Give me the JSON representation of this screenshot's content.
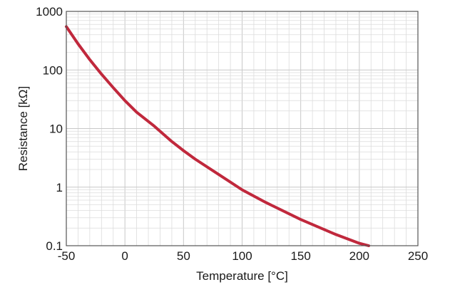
{
  "chart_data": {
    "type": "line",
    "xlabel": "Temperature [°C]",
    "ylabel": "Resistance [kΩ]",
    "xlim": [
      -50,
      250
    ],
    "ylim": [
      0.1,
      1000
    ],
    "yscale": "log",
    "grid": true,
    "x_ticks": [
      "-50",
      "0",
      "50",
      "100",
      "150",
      "200",
      "250"
    ],
    "y_ticks": [
      "0.1",
      "1",
      "10",
      "100",
      "1000"
    ],
    "series": [
      {
        "color": "#c0283c",
        "x": [
          -50,
          -40,
          -30,
          -20,
          -10,
          0,
          10,
          25,
          40,
          50,
          60,
          80,
          100,
          120,
          150,
          180,
          200,
          208
        ],
        "y": [
          550,
          280,
          150,
          85,
          50,
          30,
          19,
          11,
          6,
          4.2,
          3,
          1.65,
          0.9,
          0.55,
          0.28,
          0.155,
          0.11,
          0.1
        ]
      }
    ]
  }
}
